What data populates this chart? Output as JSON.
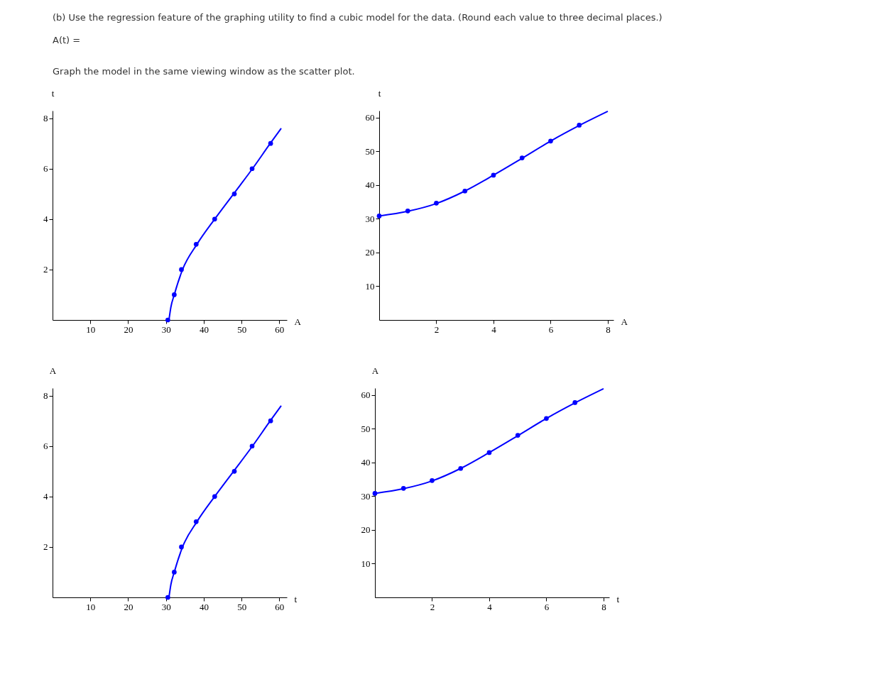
{
  "chart_data": [
    {
      "type": "other",
      "annotations": [
        "(b) Use the regression feature of the graphing utility to find a cubic model for the data. (Round each value to three decimal places.)",
        "A(t) =",
        "Graph the model in the same viewing window as the scatter plot."
      ]
    },
    {
      "type": "scatter",
      "xlabel": "A",
      "ylabel": "t",
      "xlim": [
        0,
        62
      ],
      "ylim": [
        0,
        8.3
      ],
      "xticks": [
        10,
        20,
        30,
        40,
        50,
        60
      ],
      "yticks": [
        2,
        4,
        6,
        8
      ],
      "grid": false,
      "series": [
        {
          "type": "scatter",
          "marker": "circle",
          "color": "#0000ff",
          "x": [
            30.5,
            32.2,
            34.1,
            38.0,
            42.9,
            48.1,
            52.8,
            57.7
          ],
          "values": [
            0,
            1,
            2,
            3,
            4,
            5,
            6,
            7
          ]
        },
        {
          "type": "line",
          "marker": "none",
          "color": "#0000ff",
          "x": [
            30.8,
            31.3,
            32.2,
            34.4,
            38.2,
            42.9,
            47.9,
            52.9,
            57.6,
            60.5
          ],
          "values": [
            0,
            0.5,
            1,
            2,
            3,
            4,
            5,
            6,
            7,
            7.6
          ]
        }
      ]
    },
    {
      "type": "scatter",
      "xlabel": "A",
      "ylabel": "t",
      "xlim": [
        0,
        8.2
      ],
      "ylim": [
        0,
        62
      ],
      "xticks": [
        2,
        4,
        6,
        8
      ],
      "yticks": [
        10,
        20,
        30,
        40,
        50,
        60
      ],
      "grid": false,
      "series": [
        {
          "type": "scatter",
          "marker": "circle",
          "color": "#0000ff",
          "x": [
            0,
            1,
            2,
            3,
            4,
            5,
            6,
            7
          ],
          "values": [
            30.8,
            32.3,
            34.6,
            38.2,
            42.9,
            48.0,
            53.0,
            57.7
          ]
        },
        {
          "type": "line",
          "marker": "none",
          "color": "#0000ff",
          "x": [
            0,
            1,
            2,
            3,
            4,
            5,
            6,
            7,
            8
          ],
          "values": [
            30.8,
            32.2,
            34.5,
            38.2,
            42.9,
            47.9,
            53.0,
            57.6,
            61.8
          ]
        }
      ]
    },
    {
      "type": "scatter",
      "xlabel": "t",
      "ylabel": "A",
      "xlim": [
        0,
        62
      ],
      "ylim": [
        0,
        8.3
      ],
      "xticks": [
        10,
        20,
        30,
        40,
        50,
        60
      ],
      "yticks": [
        2,
        4,
        6,
        8
      ],
      "grid": false,
      "series": [
        {
          "type": "scatter",
          "marker": "circle",
          "color": "#0000ff",
          "x": [
            30.5,
            32.2,
            34.1,
            38.0,
            42.9,
            48.1,
            52.8,
            57.7
          ],
          "values": [
            0,
            1,
            2,
            3,
            4,
            5,
            6,
            7
          ]
        },
        {
          "type": "line",
          "marker": "none",
          "color": "#0000ff",
          "x": [
            30.8,
            31.3,
            32.2,
            34.4,
            38.2,
            42.9,
            47.9,
            52.9,
            57.6,
            60.5
          ],
          "values": [
            0,
            0.5,
            1,
            2,
            3,
            4,
            5,
            6,
            7,
            7.6
          ]
        }
      ]
    },
    {
      "type": "scatter",
      "xlabel": "t",
      "ylabel": "A",
      "xlim": [
        0,
        8.2
      ],
      "ylim": [
        0,
        62
      ],
      "xticks": [
        2,
        4,
        6,
        8
      ],
      "yticks": [
        10,
        20,
        30,
        40,
        50,
        60
      ],
      "grid": false,
      "series": [
        {
          "type": "scatter",
          "marker": "circle",
          "color": "#0000ff",
          "x": [
            0,
            1,
            2,
            3,
            4,
            5,
            6,
            7
          ],
          "values": [
            30.8,
            32.3,
            34.6,
            38.2,
            42.9,
            48.0,
            53.0,
            57.7
          ]
        },
        {
          "type": "line",
          "marker": "none",
          "color": "#0000ff",
          "x": [
            0,
            1,
            2,
            3,
            4,
            5,
            6,
            7,
            8
          ],
          "values": [
            30.8,
            32.2,
            34.5,
            38.2,
            42.9,
            47.9,
            53.0,
            57.6,
            61.8
          ]
        }
      ]
    }
  ]
}
